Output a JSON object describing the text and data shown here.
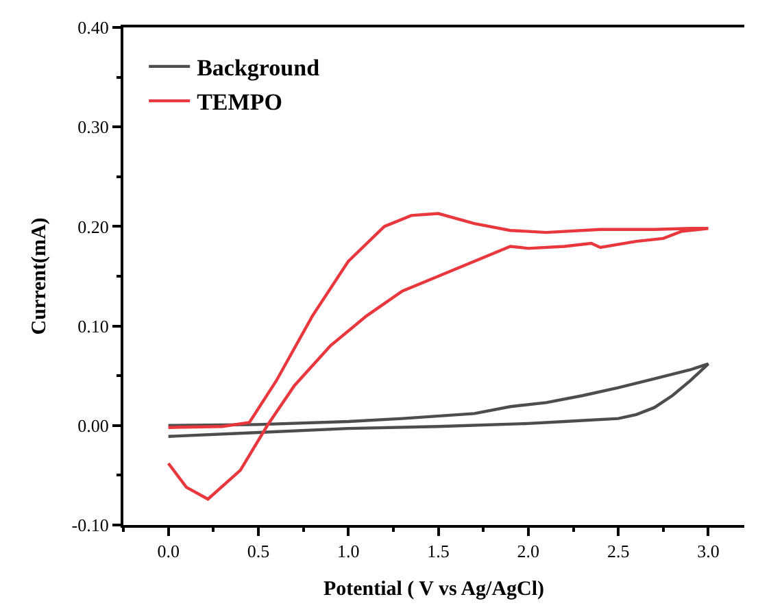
{
  "chart_data": {
    "type": "line",
    "xlabel": "Potential ( V vs Ag/AgCl)",
    "ylabel": "Current(mA)",
    "xlim": [
      -0.25,
      3.2
    ],
    "ylim": [
      -0.1,
      0.4
    ],
    "xticks": [
      {
        "value": 0,
        "label": "0.0"
      },
      0.5,
      {
        "value": 1,
        "label": "1.0"
      },
      1.5,
      {
        "value": 2,
        "label": "2.0"
      },
      2.5,
      {
        "value": 3,
        "label": "3.0"
      }
    ],
    "yticks": [
      {
        "value": -0.1,
        "label": "-0.10"
      },
      {
        "value": 0,
        "label": "0.00"
      },
      {
        "value": 0.1,
        "label": "0.10"
      },
      {
        "value": 0.2,
        "label": "0.20"
      },
      {
        "value": 0.3,
        "label": "0.30"
      },
      {
        "value": 0.4,
        "label": "0.40"
      }
    ],
    "legend": "top left",
    "line_style": "solid",
    "marker": "none",
    "series": [
      {
        "name": "Background",
        "color": "#4d4d4d",
        "x": [
          0,
          0.5,
          1.0,
          1.3,
          1.7,
          1.9,
          2.1,
          2.3,
          2.5,
          2.7,
          2.9,
          3.0,
          2.9,
          2.8,
          2.7,
          2.6,
          2.5,
          2.2,
          2.0,
          1.5,
          1.0,
          0.5,
          0.0
        ],
        "values": [
          0.0,
          0.001,
          0.004,
          0.007,
          0.012,
          0.019,
          0.023,
          0.03,
          0.038,
          0.047,
          0.056,
          0.062,
          0.045,
          0.03,
          0.018,
          0.011,
          0.007,
          0.004,
          0.002,
          -0.001,
          -0.003,
          -0.007,
          -0.011
        ]
      },
      {
        "name": "TEMPO",
        "color": "#e8383d",
        "x": [
          0,
          0.1,
          0.22,
          0.4,
          0.55,
          0.7,
          0.9,
          1.1,
          1.3,
          1.5,
          1.7,
          1.9,
          2.0,
          2.2,
          2.35,
          2.4,
          2.6,
          2.75,
          2.85,
          3.0,
          2.9,
          2.7,
          2.4,
          2.1,
          1.9,
          1.7,
          1.5,
          1.35,
          1.2,
          1.0,
          0.8,
          0.6,
          0.45,
          0.3,
          0.0
        ],
        "values": [
          -0.038,
          -0.062,
          -0.074,
          -0.045,
          0.0,
          0.04,
          0.08,
          0.11,
          0.135,
          0.15,
          0.165,
          0.18,
          0.178,
          0.18,
          0.183,
          0.179,
          0.185,
          0.188,
          0.195,
          0.198,
          0.198,
          0.197,
          0.197,
          0.194,
          0.196,
          0.203,
          0.213,
          0.211,
          0.2,
          0.165,
          0.11,
          0.045,
          0.003,
          -0.001,
          -0.002
        ]
      }
    ]
  }
}
